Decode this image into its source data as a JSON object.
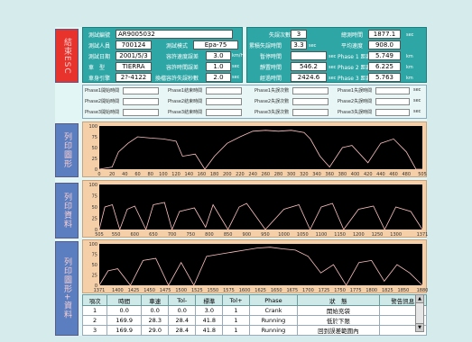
{
  "sidebar": {
    "btn1": "結束ESC",
    "btn2": "列印圖形",
    "btn3": "列印資料",
    "btn4": "列印圖形+資料"
  },
  "info": {
    "test_id_label": "測試編號",
    "test_id": "AR9005032",
    "tester_label": "測試人員",
    "tester": "700124",
    "mode_label": "測試模式",
    "mode": "Epa-75",
    "date_label": "測試日期",
    "date": "2001/5/3",
    "tol_speed_label": "容許速度誤差",
    "tol_speed": "3.0",
    "tol_speed_unit": "km/Hr",
    "model_label": "車　型",
    "model": "TIERRA",
    "tol_time_label": "容許時間誤差",
    "tol_time": "1.0",
    "tol_time_unit": "sec",
    "plate_label": "車身引擎",
    "plate": "2?-4122",
    "fail_sec_label": "換檔容許失誤秒數",
    "fail_sec": "2.0",
    "fail_sec_unit": "sec"
  },
  "stats": {
    "fails_label": "失誤次數",
    "fails": "3",
    "total_label": "總測時間",
    "total": "1877.1",
    "total_unit": "sec",
    "cum_fail_label": "累積失誤時間",
    "cum_fail": "3.3",
    "cum_fail_unit": "sec",
    "avg_speed_label": "平均速度",
    "avg_speed": "908.0",
    "pause_label": "暫停時間",
    "pause": "",
    "pause_unit": "sec",
    "p1_label": "Phase 1 距離",
    "p1": "5.749",
    "p1_unit": "km",
    "idle_label": "靜置時間",
    "idle": "546.2",
    "idle_unit": "sec",
    "p2_label": "Phase 2 距離",
    "p2": "6.225",
    "p2_unit": "km",
    "elapsed_label": "經過時間",
    "elapsed": "2424.6",
    "elapsed_unit": "sec",
    "p3_label": "Phase 3 距離",
    "p3": "5.763",
    "p3_unit": "km"
  },
  "phases": {
    "p1_start": "Phase1開始時間",
    "p1_end": "Phase1結束時間",
    "p1_fails": "Phase1失誤次數",
    "p1_fail_time": "Phase1失誤時間",
    "p2_start": "Phase2開始時間",
    "p2_end": "Phase2結束時間",
    "p2_fails": "Phase2失誤次數",
    "p2_fail_time": "Phase2失誤時間",
    "p3_start": "Phase3開始時間",
    "p3_end": "Phase3結束時間",
    "p3_fails": "Phase3失誤次數",
    "p3_fail_time": "Phase3失誤時間",
    "sec": "sec"
  },
  "chart_data": [
    {
      "type": "line",
      "ylim": [
        0,
        100
      ],
      "yticks": [
        "100",
        "75",
        "50",
        "25",
        "0"
      ],
      "xlim": [
        0,
        505
      ],
      "xticks": [
        "0",
        "20",
        "40",
        "60",
        "80",
        "100",
        "120",
        "140",
        "160",
        "180",
        "200",
        "220",
        "240",
        "260",
        "280",
        "300",
        "320",
        "340",
        "360",
        "380",
        "400",
        "420",
        "440",
        "460",
        "480",
        "505"
      ],
      "x": [
        0,
        20,
        30,
        45,
        60,
        80,
        100,
        120,
        130,
        150,
        165,
        180,
        200,
        220,
        240,
        260,
        280,
        300,
        320,
        330,
        345,
        360,
        380,
        395,
        420,
        440,
        460,
        480,
        495,
        505
      ],
      "y": [
        0,
        5,
        40,
        60,
        75,
        72,
        70,
        65,
        30,
        35,
        0,
        30,
        60,
        75,
        88,
        90,
        88,
        90,
        85,
        70,
        30,
        5,
        50,
        55,
        15,
        60,
        70,
        40,
        0,
        0
      ],
      "color": "#ffc0c0"
    },
    {
      "type": "line",
      "ylim": [
        0,
        100
      ],
      "yticks": [
        "100",
        "75",
        "50",
        "25",
        "0"
      ],
      "xlim": [
        505,
        1371
      ],
      "xticks": [
        "505",
        "550",
        "600",
        "650",
        "700",
        "750",
        "800",
        "850",
        "900",
        "950",
        "1000",
        "1050",
        "1100",
        "1150",
        "1200",
        "1250",
        "1300",
        "1371"
      ],
      "x": [
        505,
        520,
        540,
        560,
        580,
        600,
        630,
        650,
        680,
        700,
        720,
        760,
        790,
        810,
        850,
        880,
        900,
        950,
        1000,
        1040,
        1070,
        1100,
        1130,
        1160,
        1200,
        1240,
        1270,
        1300,
        1340,
        1371
      ],
      "y": [
        0,
        50,
        55,
        0,
        45,
        52,
        0,
        55,
        60,
        0,
        40,
        48,
        5,
        55,
        0,
        50,
        58,
        0,
        45,
        55,
        0,
        50,
        58,
        0,
        45,
        52,
        0,
        50,
        40,
        0
      ],
      "color": "#ffc0c0"
    },
    {
      "type": "line",
      "ylim": [
        0,
        100
      ],
      "yticks": [
        "100",
        "75",
        "50",
        "25",
        "0"
      ],
      "xlim": [
        1371,
        1880
      ],
      "xticks": [
        "1371",
        "1400",
        "1425",
        "1450",
        "1475",
        "1500",
        "1525",
        "1550",
        "1575",
        "1600",
        "1625",
        "1650",
        "1675",
        "1700",
        "1725",
        "1750",
        "1775",
        "1800",
        "1825",
        "1850",
        "1880"
      ],
      "x": [
        1371,
        1385,
        1400,
        1420,
        1440,
        1460,
        1480,
        1500,
        1520,
        1540,
        1560,
        1580,
        1600,
        1620,
        1640,
        1660,
        1680,
        1700,
        1720,
        1740,
        1760,
        1780,
        1800,
        1820,
        1840,
        1860,
        1880
      ],
      "y": [
        0,
        35,
        40,
        0,
        60,
        65,
        0,
        55,
        0,
        70,
        75,
        80,
        85,
        90,
        92,
        88,
        85,
        70,
        30,
        50,
        0,
        55,
        60,
        10,
        50,
        30,
        0
      ],
      "color": "#ffc0c0"
    }
  ],
  "table": {
    "headers": [
      "項次",
      "時間",
      "車速",
      "Tol-",
      "標準",
      "Tol+",
      "Phase",
      "狀　態",
      "警告訊息"
    ],
    "rows": [
      [
        "1",
        "0.0",
        "0.0",
        "0.0",
        "3.0",
        "1",
        "Crank",
        "開始充袋",
        ""
      ],
      [
        "2",
        "169.9",
        "28.3",
        "28.4",
        "41.8",
        "1",
        "Running",
        "低於下限",
        ""
      ],
      [
        "3",
        "169.9",
        "29.0",
        "28.4",
        "41.8",
        "1",
        "Running",
        "回到誤差範圍內",
        ""
      ]
    ]
  }
}
